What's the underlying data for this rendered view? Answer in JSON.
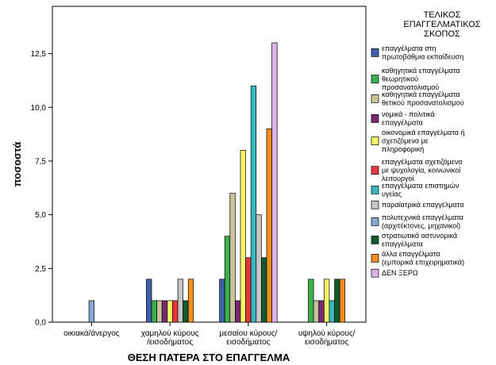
{
  "chart_data": {
    "type": "bar",
    "xlabel": "ΘΕΣΗ ΠΑΤΕΡΑ ΣΤΟ ΕΠΑΓΓΕΛΜΑ",
    "ylabel": "ποσοστά",
    "ylim": [
      0,
      14.7
    ],
    "yticks": [
      "0,0",
      "2,5",
      "5,0",
      "7,5",
      "10,0",
      "12,5"
    ],
    "ytick_values": [
      0,
      2.5,
      5,
      7.5,
      10,
      12.5
    ],
    "categories": [
      [
        "οικιακά/άνεργος"
      ],
      [
        "χαμηλού κύρους",
        "/εισοδήματος"
      ],
      [
        "μεσαίου κύρους/",
        "εισοδήματος"
      ],
      [
        "υψηλού κύρους/",
        "εισοδήματος"
      ]
    ],
    "legend_title": [
      "ΤΕΛΙΚΟΣ",
      "ΕΠΑΓΓΕΛΜΑΤΙΚΟΣ",
      "ΣΚΟΠΟΣ"
    ],
    "legend_position": "right",
    "series": [
      {
        "name": [
          "επαγγέλματα στη",
          "πρωτοβάθμια εκπαίδευση"
        ],
        "color": "#3f5fa8",
        "values": [
          0,
          2,
          2,
          0
        ]
      },
      {
        "name": [
          "καθηγητικά επαγγέλματα",
          "θεωρητικού",
          "προσανατολισμού"
        ],
        "color": "#3cb04c",
        "values": [
          0,
          1,
          4,
          2
        ]
      },
      {
        "name": [
          "καθηγητικά επαγγέλματα",
          "θετικού προσανατολισμού"
        ],
        "color": "#c8c39a",
        "values": [
          0,
          1,
          6,
          1
        ]
      },
      {
        "name": [
          "νομικά - πολιτικά",
          "επαγγέλματα"
        ],
        "color": "#7a2a72",
        "values": [
          0,
          1,
          1,
          1
        ]
      },
      {
        "name": [
          "οικονομικά επαγγέλματα ή",
          "σχετιζόμενα με",
          "πληροφορική"
        ],
        "color": "#f7f568",
        "values": [
          0,
          1,
          8,
          2
        ]
      },
      {
        "name": [
          "επαγγέλματα σχετιζόμενα",
          "με ψυχολογία, κοινωνικοί",
          "λειτουργοί"
        ],
        "color": "#e8373c",
        "values": [
          0,
          1,
          3,
          0
        ]
      },
      {
        "name": [
          "επαγγέλματα επιστημών",
          "υγείας"
        ],
        "color": "#38b8c0",
        "values": [
          0,
          0,
          11,
          1
        ]
      },
      {
        "name": [
          "παραϊατρικά επαγγέλματα"
        ],
        "color": "#c6c6c6",
        "values": [
          0,
          2,
          5,
          0
        ]
      },
      {
        "name": [
          "πολυτεχνικά επαγγέλματα",
          "(αρχιτέκτονες, μηχανικοί)"
        ],
        "color": "#87a8d2",
        "values": [
          1,
          0,
          0,
          0
        ]
      },
      {
        "name": [
          "στρατιωτικά αστυνομικά",
          "επαγγέλματα"
        ],
        "color": "#135a2e",
        "values": [
          0,
          1,
          3,
          2
        ]
      },
      {
        "name": [
          "άλλα επαγγέλματα",
          "(εμπορικά επιχειρηματικά)"
        ],
        "color": "#f4901e",
        "values": [
          0,
          2,
          9,
          2
        ]
      },
      {
        "name": [
          "ΔΕΝ ΞΕΡΩ"
        ],
        "color": "#dcb4ea",
        "values": [
          0,
          0,
          13,
          0
        ]
      }
    ]
  }
}
